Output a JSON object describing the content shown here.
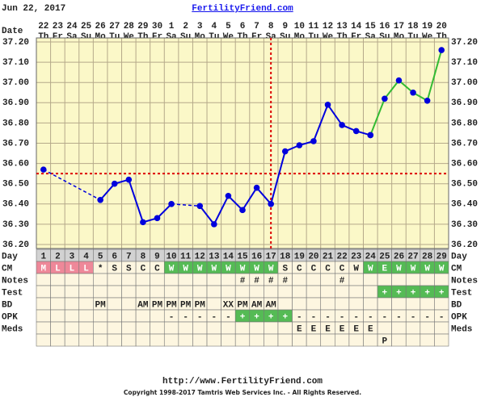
{
  "header": {
    "date": "Jun 22, 2017",
    "site": "FertilityFriend.com"
  },
  "chart_data": {
    "type": "line",
    "date_label": "Date",
    "dates": [
      "22",
      "23",
      "24",
      "25",
      "26",
      "27",
      "28",
      "29",
      "30",
      "1",
      "2",
      "3",
      "4",
      "5",
      "6",
      "7",
      "8",
      "9",
      "10",
      "11",
      "12",
      "13",
      "14",
      "15",
      "16",
      "17",
      "18",
      "19",
      "20"
    ],
    "weekdays": [
      "Th",
      "Fr",
      "Sa",
      "Su",
      "Mo",
      "Tu",
      "We",
      "Th",
      "Fr",
      "Sa",
      "Su",
      "Mo",
      "Tu",
      "We",
      "Th",
      "Fr",
      "Sa",
      "Su",
      "Mo",
      "Tu",
      "We",
      "Th",
      "Fr",
      "Sa",
      "Su",
      "Mo",
      "Tu",
      "We",
      "Th"
    ],
    "x_label": "Day",
    "categories": [
      1,
      2,
      3,
      4,
      5,
      6,
      7,
      8,
      9,
      10,
      11,
      12,
      13,
      14,
      15,
      16,
      17,
      18,
      19,
      20,
      21,
      22,
      23,
      24,
      25,
      26,
      27,
      28,
      29
    ],
    "series": [
      {
        "color": "#0000dd",
        "values": [
          36.57,
          null,
          null,
          null,
          36.42,
          36.5,
          36.52,
          36.31,
          36.33,
          36.4,
          null,
          36.39,
          36.3,
          36.44,
          36.37,
          36.48,
          36.4,
          36.66,
          36.69,
          36.71,
          36.89,
          36.79,
          36.76,
          36.74,
          null,
          null,
          null,
          null,
          null
        ]
      },
      {
        "color": "#33bb33",
        "values": [
          null,
          null,
          null,
          null,
          null,
          null,
          null,
          null,
          null,
          null,
          null,
          null,
          null,
          null,
          null,
          null,
          null,
          null,
          null,
          null,
          null,
          null,
          null,
          36.74,
          36.92,
          37.01,
          36.95,
          36.91,
          37.16
        ]
      }
    ],
    "ylim": [
      36.18,
      37.22
    ],
    "yticks": [
      {
        "value": 36.2,
        "label": "36.20"
      },
      {
        "value": 36.3,
        "label": "36.30"
      },
      {
        "value": 36.4,
        "label": "36.40"
      },
      {
        "value": 36.5,
        "label": "36.50"
      },
      {
        "value": 36.6,
        "label": "36.60"
      },
      {
        "value": 36.7,
        "label": "36.70"
      },
      {
        "value": 36.8,
        "label": "36.80"
      },
      {
        "value": 36.9,
        "label": "36.90"
      },
      {
        "value": 37.0,
        "label": "37.00"
      },
      {
        "value": 37.1,
        "label": "37.10"
      },
      {
        "value": 37.2,
        "label": "37.20"
      }
    ],
    "coverline": 36.55,
    "ovulation_day": 17,
    "grid": true
  },
  "table": {
    "rows": [
      {
        "label": "CM",
        "cells": [
          "M",
          "L",
          "L",
          "L",
          "*",
          "S",
          "S",
          "C",
          "C",
          "W",
          "W",
          "W",
          "W",
          "W",
          "W",
          "W",
          "W",
          "S",
          "C",
          "C",
          "C",
          "C",
          "W",
          "W",
          "E",
          "W",
          "W",
          "W",
          "W"
        ],
        "colors": [
          "#ee8899",
          "#ee8899",
          "#ee8899",
          "#ee8899",
          null,
          null,
          null,
          null,
          null,
          "#55bb55",
          "#55bb55",
          "#55bb55",
          "#55bb55",
          "#55bb55",
          "#55bb55",
          "#55bb55",
          "#55bb55",
          null,
          null,
          null,
          null,
          null,
          null,
          "#55bb55",
          "#55bb55",
          "#55bb55",
          "#55bb55",
          "#55bb55",
          "#55bb55"
        ]
      },
      {
        "label": "Notes",
        "cells": [
          null,
          null,
          null,
          null,
          null,
          null,
          null,
          null,
          null,
          null,
          null,
          null,
          null,
          null,
          "#",
          "#",
          "#",
          "#",
          null,
          null,
          null,
          "#",
          null,
          null,
          null,
          null,
          null,
          null,
          null
        ]
      },
      {
        "label": "Test",
        "cells": [
          null,
          null,
          null,
          null,
          null,
          null,
          null,
          null,
          null,
          null,
          null,
          null,
          null,
          null,
          null,
          null,
          null,
          null,
          null,
          null,
          null,
          null,
          null,
          null,
          "+",
          "+",
          "+",
          "+",
          "+"
        ],
        "colors": [
          null,
          null,
          null,
          null,
          null,
          null,
          null,
          null,
          null,
          null,
          null,
          null,
          null,
          null,
          null,
          null,
          null,
          null,
          null,
          null,
          null,
          null,
          null,
          null,
          "#55bb55",
          "#55bb55",
          "#55bb55",
          "#55bb55",
          "#55bb55"
        ]
      },
      {
        "label": "BD",
        "cells": [
          null,
          null,
          null,
          null,
          "PM",
          null,
          null,
          "AM",
          "PM",
          "PM",
          "PM",
          "PM",
          null,
          "XX",
          "PM",
          "AM",
          "AM",
          null,
          null,
          null,
          null,
          null,
          null,
          null,
          null,
          null,
          null,
          null,
          null
        ]
      },
      {
        "label": "OPK",
        "cells": [
          null,
          null,
          null,
          null,
          null,
          null,
          null,
          null,
          null,
          "-",
          "-",
          "-",
          "-",
          "-",
          "+",
          "+",
          "+",
          "+",
          "-",
          "-",
          "-",
          "-",
          "-",
          "-",
          "-",
          "-",
          "-",
          "-",
          "-"
        ],
        "colors": [
          null,
          null,
          null,
          null,
          null,
          null,
          null,
          null,
          null,
          null,
          null,
          null,
          null,
          null,
          "#55bb55",
          "#55bb55",
          "#55bb55",
          "#55bb55",
          null,
          null,
          null,
          null,
          null,
          null,
          null,
          null,
          null,
          null,
          null
        ]
      },
      {
        "label": "Meds",
        "cells": [
          null,
          null,
          null,
          null,
          null,
          null,
          null,
          null,
          null,
          null,
          null,
          null,
          null,
          null,
          null,
          null,
          null,
          null,
          "E",
          "E",
          "E",
          "E",
          "E",
          "E",
          null,
          null,
          null,
          null,
          null
        ]
      },
      {
        "label": null,
        "cells": [
          null,
          null,
          null,
          null,
          null,
          null,
          null,
          null,
          null,
          null,
          null,
          null,
          null,
          null,
          null,
          null,
          null,
          null,
          null,
          null,
          null,
          null,
          null,
          null,
          "P",
          null,
          null,
          null,
          null
        ]
      }
    ]
  },
  "footer": {
    "url": "http://www.FertilityFriend.com",
    "copyright": "Copyright 1998-2017 Tamtris Web Services Inc. - All Rights Reserved."
  }
}
